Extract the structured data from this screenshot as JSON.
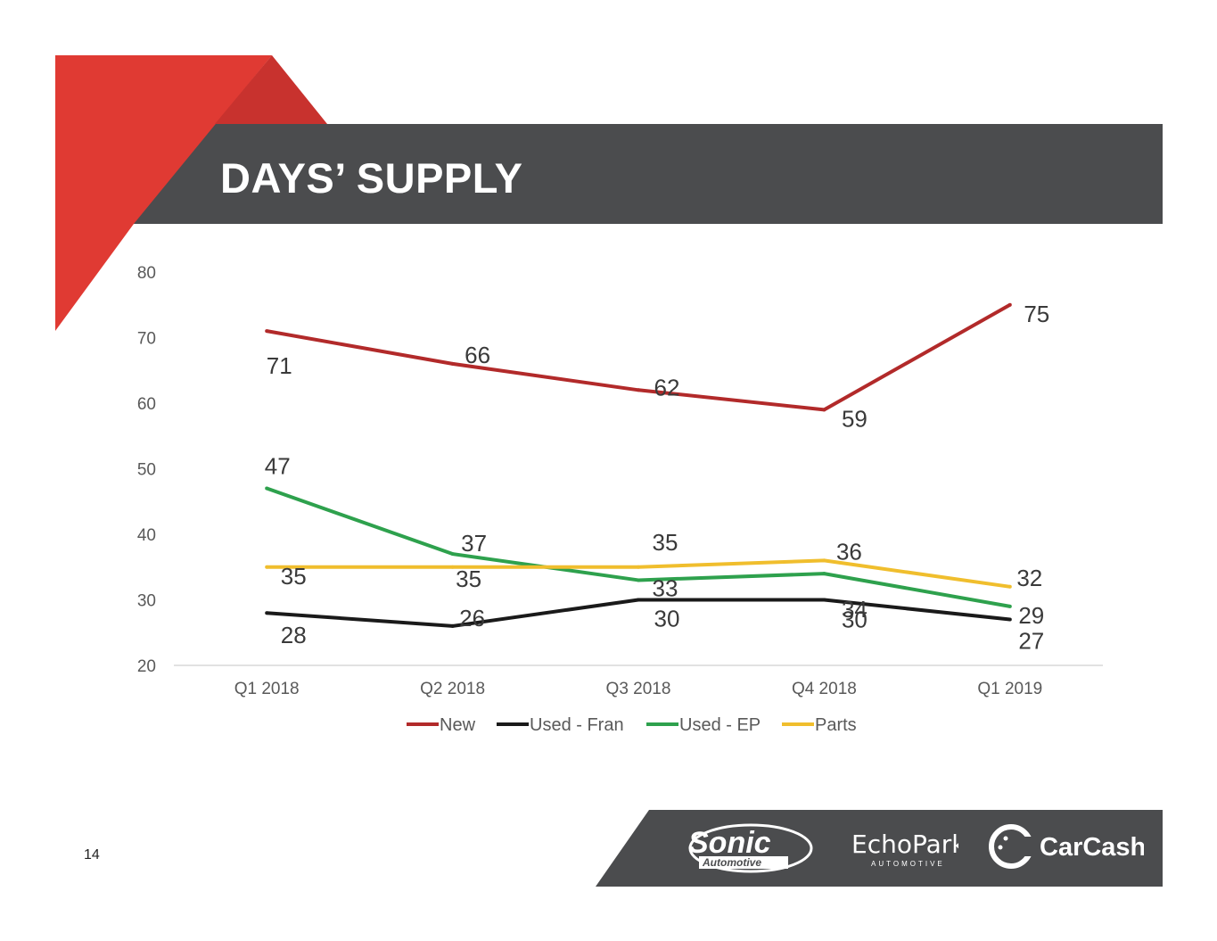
{
  "slide": {
    "title": "DAYS’ SUPPLY",
    "page_number": "14",
    "accent_color": "#e03a33",
    "band_color": "#4b4c4e"
  },
  "logos": [
    {
      "name": "sonic-automotive-logo",
      "text": "Sonic Automotive"
    },
    {
      "name": "echopark-logo",
      "text": "EchoPark AUTOMOTIVE"
    },
    {
      "name": "carcash-logo",
      "text": "CarCash"
    }
  ],
  "chart_data": {
    "type": "line",
    "title": "",
    "xlabel": "",
    "ylabel": "",
    "categories": [
      "Q1 2018",
      "Q2 2018",
      "Q3 2018",
      "Q4 2018",
      "Q1 2019"
    ],
    "ylim": [
      20,
      80
    ],
    "yticks": [
      20,
      30,
      40,
      50,
      60,
      70,
      80
    ],
    "grid": false,
    "legend": "bottom",
    "series": [
      {
        "name": "New",
        "color": "#b22a2a",
        "values": [
          71,
          66,
          62,
          59,
          75
        ],
        "labels": [
          "71",
          "66",
          "62",
          "59",
          "75"
        ]
      },
      {
        "name": "Used - Fran",
        "color": "#1a1a1a",
        "values": [
          28,
          26,
          30,
          30,
          27
        ],
        "labels": [
          "28",
          "26",
          "30",
          "30",
          "27"
        ]
      },
      {
        "name": "Used - EP",
        "color": "#2ea14d",
        "values": [
          47,
          37,
          33,
          34,
          29
        ],
        "labels": [
          "47",
          "37",
          "33",
          "34",
          "29"
        ]
      },
      {
        "name": "Parts",
        "color": "#f0be2d",
        "values": [
          35,
          35,
          35,
          36,
          32
        ],
        "labels": [
          "35",
          "35",
          "35",
          "36",
          "32"
        ]
      }
    ]
  }
}
